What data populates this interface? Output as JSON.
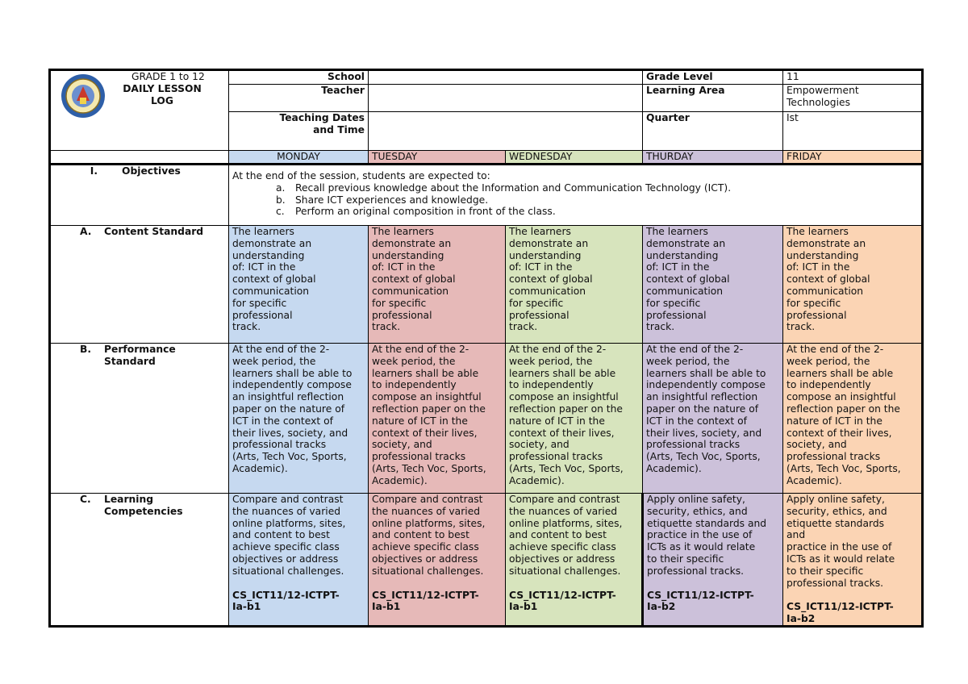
{
  "header": {
    "grade_range": "GRADE 1 to 12",
    "title": "DAILY LESSON\nLOG",
    "school_label": "School",
    "school_value": "",
    "teacher_label": "Teacher",
    "teacher_value": "",
    "dates_label": "Teaching Dates\nand Time",
    "dates_value": "",
    "grade_level_label": "Grade Level",
    "grade_level_value": "11",
    "learning_area_label": "Learning Area",
    "learning_area_value": "Empowerment\nTechnologies",
    "quarter_label": "Quarter",
    "quarter_value": "Ist",
    "logo": "deped-seal-icon"
  },
  "days": [
    "MONDAY",
    "TUESDAY",
    "WEDNESDAY",
    "THURDAY",
    "FRIDAY"
  ],
  "day_colors": [
    "#c6d9f0",
    "#e6b9b8",
    "#d7e4bd",
    "#ccc1da",
    "#fbd4b4"
  ],
  "objectives": {
    "numeral": "I.",
    "label": "Objectives",
    "intro": "At the end of the session, students are expected to:",
    "items": [
      {
        "marker": "a.",
        "text": "Recall previous knowledge about the Information and Communication Technology (ICT)."
      },
      {
        "marker": "b.",
        "text": "Share ICT experiences and knowledge."
      },
      {
        "marker": "c.",
        "text": "Perform an original composition in front of the class."
      }
    ]
  },
  "content_standard": {
    "letter": "A.",
    "label": "Content Standard",
    "cells": [
      "The learners\ndemonstrate an\nunderstanding\nof: ICT in the\ncontext of global\ncommunication\nfor specific\nprofessional\ntrack.",
      "The learners\ndemonstrate an\nunderstanding\nof: ICT in the\ncontext of global\ncommunication\nfor specific\nprofessional\ntrack.",
      "The learners\ndemonstrate an\nunderstanding\nof: ICT in the\ncontext of global\ncommunication\nfor specific\nprofessional\ntrack.",
      "The learners\ndemonstrate an\nunderstanding\nof: ICT in the\ncontext of global\ncommunication\nfor specific\nprofessional\ntrack.",
      "The learners\ndemonstrate an\nunderstanding\nof: ICT in the\ncontext of global\ncommunication\nfor specific\nprofessional\ntrack."
    ]
  },
  "performance_standard": {
    "letter": "B.",
    "label": "Performance\nStandard",
    "cells": [
      "At the end of the 2-\nweek period, the\nlearners shall be able to\nindependently compose\nan insightful reflection\npaper on the nature of\nICT in the context of\ntheir lives, society, and\nprofessional tracks\n(Arts, Tech Voc, Sports,\nAcademic).",
      "At the end of the 2-\nweek period, the\nlearners shall be able\nto independently\ncompose an insightful\nreflection paper on the\nnature of ICT in the\ncontext of their lives,\nsociety, and\nprofessional tracks\n(Arts, Tech Voc, Sports,\nAcademic).",
      "At the end of the 2-\nweek period, the\nlearners shall be able\nto independently\ncompose an insightful\nreflection paper on the\nnature of ICT in the\ncontext of their lives,\nsociety, and\nprofessional tracks\n(Arts, Tech Voc, Sports,\nAcademic).",
      "At the end of the 2-\nweek period, the\nlearners shall be able to\nindependently compose\nan insightful reflection\npaper on the nature of\nICT in the context of\ntheir lives, society, and\nprofessional tracks\n(Arts, Tech Voc, Sports,\nAcademic).",
      "At the end of the 2-\nweek period, the\nlearners shall be able\nto independently\ncompose an insightful\nreflection paper on the\nnature of ICT in the\ncontext of their lives,\nsociety, and\nprofessional tracks\n(Arts, Tech Voc, Sports,\nAcademic)."
    ]
  },
  "learning_competencies": {
    "letter": "C.",
    "label": "Learning\nCompetencies",
    "cells": [
      {
        "text": "Compare and contrast\nthe nuances of varied\nonline platforms, sites,\nand content to best\nachieve specific class\nobjectives or address\nsituational challenges.",
        "code": "CS_ICT11/12-ICTPT-\nIa-b1"
      },
      {
        "text": "Compare and contrast\nthe nuances of varied\nonline platforms, sites,\nand content to best\nachieve specific class\nobjectives or address\nsituational challenges.",
        "code": "CS_ICT11/12-ICTPT-\nIa-b1"
      },
      {
        "text": "Compare and contrast\nthe nuances of varied\nonline platforms, sites,\nand content to best\nachieve specific class\nobjectives or address\nsituational challenges.",
        "code": "CS_ICT11/12-ICTPT-\nIa-b1"
      },
      {
        "text": "Apply online safety,\nsecurity, ethics, and\netiquette standards and\npractice in the use of\nICTs as it would relate\nto their specific\nprofessional tracks.",
        "code": "CS_ICT11/12-ICTPT-\nIa-b2"
      },
      {
        "text": "Apply online safety,\nsecurity, ethics, and\netiquette standards\nand\npractice in the use of\nICTs as it would relate\nto their specific\nprofessional tracks.",
        "code": "CS_ICT11/12-ICTPT-\nIa-b2"
      }
    ]
  }
}
